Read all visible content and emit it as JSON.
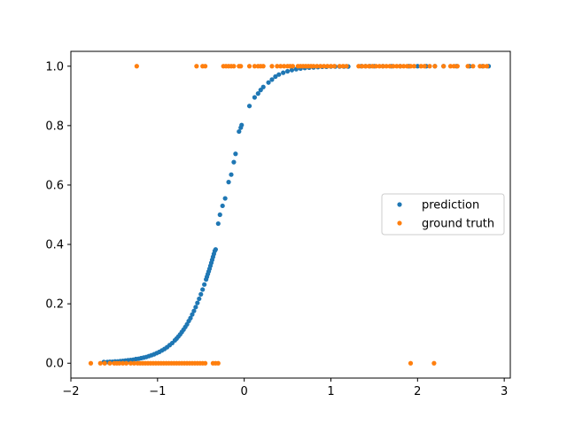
{
  "chart_data": {
    "type": "scatter",
    "title": "",
    "xlabel": "",
    "ylabel": "",
    "xlim": [
      -2.0,
      3.07
    ],
    "ylim": [
      -0.05,
      1.05
    ],
    "grid": false,
    "legend_placement": "center-right",
    "x_ticks": [
      -2,
      -1,
      0,
      1,
      2,
      3
    ],
    "x_tick_labels": [
      "−2",
      "−1",
      "0",
      "1",
      "2",
      "3"
    ],
    "y_ticks": [
      0.0,
      0.2,
      0.4,
      0.6,
      0.8,
      1.0
    ],
    "y_tick_labels": [
      "0.0",
      "0.2",
      "0.4",
      "0.6",
      "0.8",
      "1.0"
    ],
    "series": [
      {
        "name": "prediction",
        "color": "#1f77b4",
        "marker": "dot",
        "points": [
          [
            -1.62,
            0.004
          ],
          [
            -1.58,
            0.004
          ],
          [
            -1.55,
            0.005
          ],
          [
            -1.52,
            0.005
          ],
          [
            -1.49,
            0.006
          ],
          [
            -1.46,
            0.006
          ],
          [
            -1.43,
            0.007
          ],
          [
            -1.4,
            0.008
          ],
          [
            -1.37,
            0.009
          ],
          [
            -1.34,
            0.01
          ],
          [
            -1.31,
            0.011
          ],
          [
            -1.28,
            0.012
          ],
          [
            -1.25,
            0.014
          ],
          [
            -1.22,
            0.015
          ],
          [
            -1.19,
            0.017
          ],
          [
            -1.16,
            0.019
          ],
          [
            -1.13,
            0.021
          ],
          [
            -1.1,
            0.024
          ],
          [
            -1.07,
            0.027
          ],
          [
            -1.04,
            0.03
          ],
          [
            -1.01,
            0.034
          ],
          [
            -0.98,
            0.038
          ],
          [
            -0.95,
            0.043
          ],
          [
            -0.92,
            0.048
          ],
          [
            -0.89,
            0.054
          ],
          [
            -0.86,
            0.061
          ],
          [
            -0.83,
            0.068
          ],
          [
            -0.8,
            0.077
          ],
          [
            -0.78,
            0.083
          ],
          [
            -0.76,
            0.09
          ],
          [
            -0.74,
            0.097
          ],
          [
            -0.72,
            0.105
          ],
          [
            -0.7,
            0.113
          ],
          [
            -0.68,
            0.122
          ],
          [
            -0.66,
            0.131
          ],
          [
            -0.64,
            0.142
          ],
          [
            -0.62,
            0.152
          ],
          [
            -0.6,
            0.164
          ],
          [
            -0.58,
            0.176
          ],
          [
            -0.56,
            0.189
          ],
          [
            -0.54,
            0.203
          ],
          [
            -0.52,
            0.217
          ],
          [
            -0.5,
            0.232
          ],
          [
            -0.48,
            0.248
          ],
          [
            -0.46,
            0.265
          ],
          [
            -0.44,
            0.282
          ],
          [
            -0.43,
            0.291
          ],
          [
            -0.42,
            0.3
          ],
          [
            -0.41,
            0.309
          ],
          [
            -0.4,
            0.318
          ],
          [
            -0.39,
            0.328
          ],
          [
            -0.38,
            0.338
          ],
          [
            -0.37,
            0.348
          ],
          [
            -0.36,
            0.358
          ],
          [
            -0.35,
            0.368
          ],
          [
            -0.34,
            0.378
          ],
          [
            -0.33,
            0.383
          ],
          [
            -0.3,
            0.47
          ],
          [
            -0.28,
            0.5
          ],
          [
            -0.25,
            0.53
          ],
          [
            -0.22,
            0.555
          ],
          [
            -0.18,
            0.61
          ],
          [
            -0.15,
            0.635
          ],
          [
            -0.12,
            0.677
          ],
          [
            -0.1,
            0.705
          ],
          [
            -0.06,
            0.78
          ],
          [
            -0.04,
            0.793
          ],
          [
            -0.03,
            0.802
          ],
          [
            0.06,
            0.866
          ],
          [
            0.12,
            0.895
          ],
          [
            0.16,
            0.908
          ],
          [
            0.19,
            0.92
          ],
          [
            0.22,
            0.93
          ],
          [
            0.28,
            0.945
          ],
          [
            0.32,
            0.955
          ],
          [
            0.36,
            0.965
          ],
          [
            0.4,
            0.972
          ],
          [
            0.45,
            0.978
          ],
          [
            0.5,
            0.983
          ],
          [
            0.55,
            0.987
          ],
          [
            0.6,
            0.99
          ],
          [
            0.65,
            0.992
          ],
          [
            0.7,
            0.994
          ],
          [
            0.75,
            0.995
          ],
          [
            0.8,
            0.996
          ],
          [
            0.85,
            0.997
          ],
          [
            0.9,
            0.998
          ],
          [
            0.95,
            0.998
          ],
          [
            1.0,
            0.999
          ],
          [
            1.05,
            0.999
          ],
          [
            1.1,
            0.999
          ],
          [
            1.15,
            0.999
          ],
          [
            1.2,
            0.999
          ],
          [
            1.35,
            1.0
          ],
          [
            1.4,
            1.0
          ],
          [
            1.45,
            1.0
          ],
          [
            1.5,
            1.0
          ],
          [
            1.6,
            1.0
          ],
          [
            1.7,
            1.0
          ],
          [
            1.8,
            1.0
          ],
          [
            1.9,
            1.0
          ],
          [
            2.0,
            1.0
          ],
          [
            2.1,
            1.0
          ],
          [
            2.2,
            1.0
          ],
          [
            2.3,
            1.0
          ],
          [
            2.45,
            1.0
          ],
          [
            2.6,
            1.0
          ],
          [
            2.75,
            1.0
          ],
          [
            2.82,
            1.0
          ]
        ]
      },
      {
        "name": "ground truth",
        "color": "#ff7f0e",
        "marker": "dot",
        "points": [
          [
            -1.77,
            0
          ],
          [
            -1.66,
            0
          ],
          [
            -1.61,
            0
          ],
          [
            -1.55,
            0
          ],
          [
            -1.5,
            0
          ],
          [
            -1.47,
            0
          ],
          [
            -1.44,
            0
          ],
          [
            -1.4,
            0
          ],
          [
            -1.36,
            0
          ],
          [
            -1.31,
            0
          ],
          [
            -1.27,
            0
          ],
          [
            -1.23,
            0
          ],
          [
            -1.2,
            0
          ],
          [
            -1.17,
            0
          ],
          [
            -1.14,
            0
          ],
          [
            -1.11,
            0
          ],
          [
            -1.08,
            0
          ],
          [
            -1.05,
            0
          ],
          [
            -1.02,
            0
          ],
          [
            -0.99,
            0
          ],
          [
            -0.96,
            0
          ],
          [
            -0.93,
            0
          ],
          [
            -0.9,
            0
          ],
          [
            -0.87,
            0
          ],
          [
            -0.84,
            0
          ],
          [
            -0.81,
            0
          ],
          [
            -0.78,
            0
          ],
          [
            -0.75,
            0
          ],
          [
            -0.72,
            0
          ],
          [
            -0.69,
            0
          ],
          [
            -0.66,
            0
          ],
          [
            -0.63,
            0
          ],
          [
            -0.6,
            0
          ],
          [
            -0.57,
            0
          ],
          [
            -0.54,
            0
          ],
          [
            -0.51,
            0
          ],
          [
            -0.48,
            0
          ],
          [
            -0.45,
            0
          ],
          [
            -0.36,
            0
          ],
          [
            -0.33,
            0
          ],
          [
            -0.3,
            0
          ],
          [
            1.92,
            0
          ],
          [
            2.19,
            0
          ],
          [
            -1.24,
            1
          ],
          [
            -0.55,
            1
          ],
          [
            -0.48,
            1
          ],
          [
            -0.45,
            1
          ],
          [
            -0.24,
            1
          ],
          [
            -0.21,
            1
          ],
          [
            -0.18,
            1
          ],
          [
            -0.15,
            1
          ],
          [
            -0.12,
            1
          ],
          [
            -0.06,
            1
          ],
          [
            -0.04,
            1
          ],
          [
            0.06,
            1
          ],
          [
            0.12,
            1
          ],
          [
            0.16,
            1
          ],
          [
            0.19,
            1
          ],
          [
            0.22,
            1
          ],
          [
            0.32,
            1
          ],
          [
            0.38,
            1
          ],
          [
            0.42,
            1
          ],
          [
            0.46,
            1
          ],
          [
            0.5,
            1
          ],
          [
            0.53,
            1
          ],
          [
            0.56,
            1
          ],
          [
            0.62,
            1
          ],
          [
            0.65,
            1
          ],
          [
            0.68,
            1
          ],
          [
            0.71,
            1
          ],
          [
            0.74,
            1
          ],
          [
            0.77,
            1
          ],
          [
            0.8,
            1
          ],
          [
            0.84,
            1
          ],
          [
            0.88,
            1
          ],
          [
            0.92,
            1
          ],
          [
            0.96,
            1
          ],
          [
            1.0,
            1
          ],
          [
            1.04,
            1
          ],
          [
            1.1,
            1
          ],
          [
            1.14,
            1
          ],
          [
            1.18,
            1
          ],
          [
            1.32,
            1
          ],
          [
            1.36,
            1
          ],
          [
            1.4,
            1
          ],
          [
            1.44,
            1
          ],
          [
            1.48,
            1
          ],
          [
            1.52,
            1
          ],
          [
            1.56,
            1
          ],
          [
            1.6,
            1
          ],
          [
            1.64,
            1
          ],
          [
            1.68,
            1
          ],
          [
            1.72,
            1
          ],
          [
            1.76,
            1
          ],
          [
            1.8,
            1
          ],
          [
            1.84,
            1
          ],
          [
            1.88,
            1
          ],
          [
            1.92,
            1
          ],
          [
            1.96,
            1
          ],
          [
            2.04,
            1
          ],
          [
            2.08,
            1
          ],
          [
            2.14,
            1
          ],
          [
            2.2,
            1
          ],
          [
            2.3,
            1
          ],
          [
            2.38,
            1
          ],
          [
            2.42,
            1
          ],
          [
            2.46,
            1
          ],
          [
            2.58,
            1
          ],
          [
            2.64,
            1
          ],
          [
            2.72,
            1
          ],
          [
            2.76,
            1
          ],
          [
            2.8,
            1
          ]
        ]
      }
    ]
  }
}
